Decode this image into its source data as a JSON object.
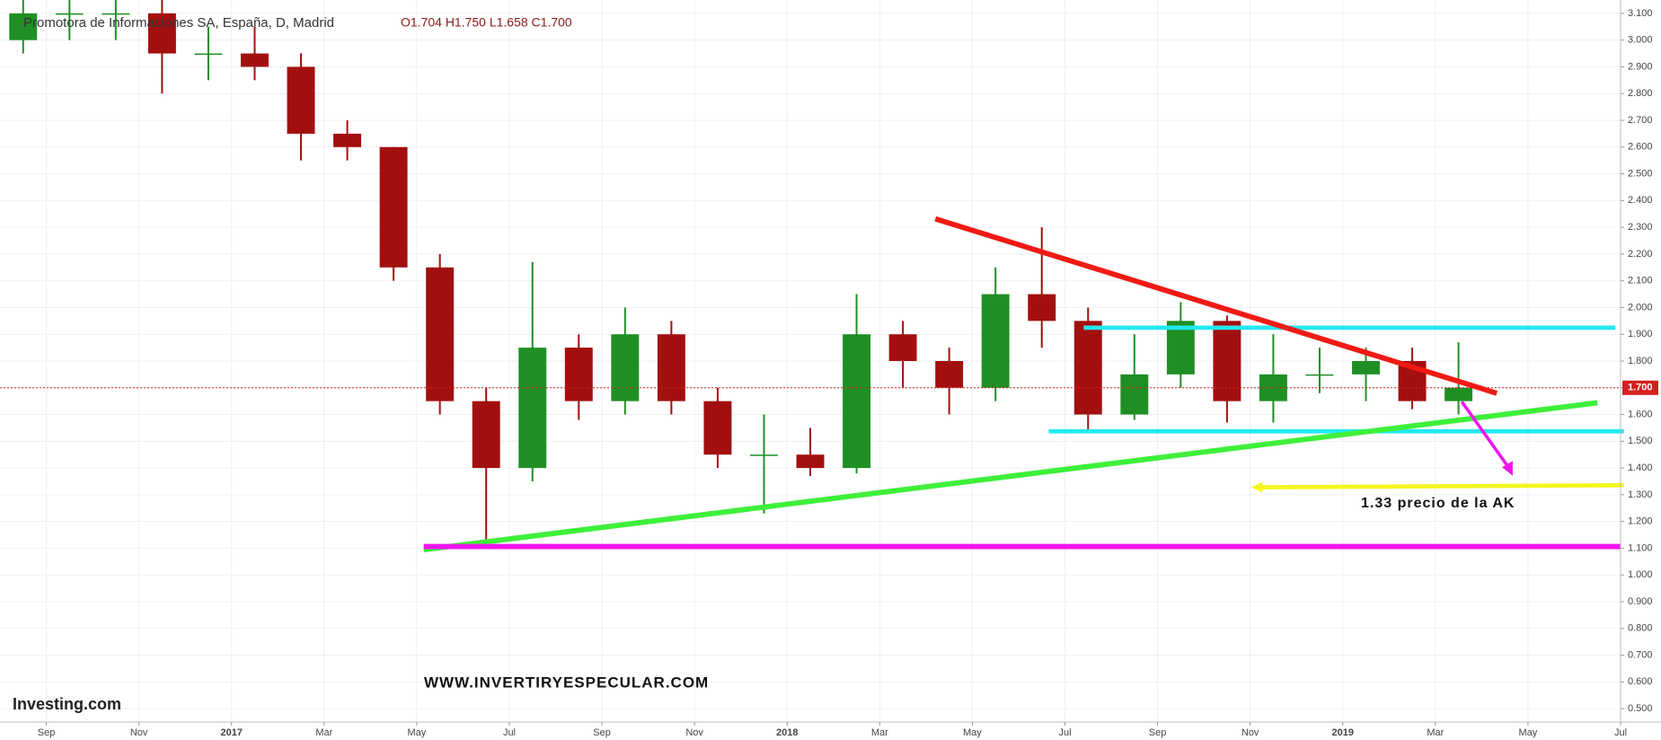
{
  "chart_data": {
    "type": "candlestick",
    "title": "Promotora de Informaciones SA, España, D, Madrid",
    "subtitle": "O1.704  H1.750  L1.658  C1.700",
    "annotations": [
      "WWW.INVERTIRYESPECULAR.COM",
      "1.33 precio de la AK"
    ],
    "source": "Investing.com",
    "up_color": "#1f8f24",
    "down_color": "#a30f0f",
    "grid": true,
    "x": [
      "2016-08",
      "2016-09",
      "2016-10",
      "2016-11",
      "2016-12",
      "2017-01",
      "2017-02",
      "2017-03",
      "2017-04",
      "2017-05",
      "2017-06",
      "2017-07",
      "2017-08",
      "2017-09",
      "2017-10",
      "2017-11",
      "2017-12",
      "2018-01",
      "2018-02",
      "2018-03",
      "2018-04",
      "2018-05",
      "2018-06",
      "2018-07",
      "2018-08",
      "2018-09",
      "2018-10",
      "2018-11",
      "2018-12",
      "2019-01",
      "2019-02",
      "2019-03"
    ],
    "open": [
      3.0,
      3.1,
      3.1,
      3.1,
      2.95,
      2.95,
      2.9,
      2.65,
      2.6,
      2.15,
      1.65,
      1.4,
      1.85,
      1.65,
      1.9,
      1.65,
      1.45,
      1.45,
      1.4,
      1.9,
      1.8,
      1.7,
      2.05,
      1.95,
      1.6,
      1.75,
      1.95,
      1.65,
      1.75,
      1.75,
      1.8,
      1.65
    ],
    "high": [
      3.15,
      3.15,
      3.15,
      3.15,
      3.05,
      3.05,
      2.95,
      2.7,
      2.6,
      2.2,
      1.7,
      2.17,
      1.9,
      2.0,
      1.95,
      1.7,
      1.6,
      1.55,
      2.05,
      1.95,
      1.85,
      2.15,
      2.3,
      2.0,
      1.9,
      2.02,
      1.97,
      1.9,
      1.85,
      1.85,
      1.85,
      1.87
    ],
    "low": [
      2.95,
      3.0,
      3.0,
      2.8,
      2.85,
      2.85,
      2.55,
      2.55,
      2.1,
      1.6,
      1.13,
      1.35,
      1.58,
      1.6,
      1.6,
      1.4,
      1.23,
      1.37,
      1.38,
      1.7,
      1.6,
      1.65,
      1.85,
      1.54,
      1.58,
      1.7,
      1.57,
      1.57,
      1.68,
      1.65,
      1.62,
      1.6
    ],
    "close": [
      3.1,
      3.1,
      3.1,
      2.95,
      2.95,
      2.9,
      2.65,
      2.6,
      2.15,
      1.65,
      1.4,
      1.85,
      1.65,
      1.9,
      1.65,
      1.45,
      1.45,
      1.4,
      1.9,
      1.8,
      1.7,
      2.05,
      1.95,
      1.6,
      1.75,
      1.95,
      1.65,
      1.75,
      1.75,
      1.8,
      1.65,
      1.7
    ],
    "xlim": [
      "2016-08",
      "2019-07"
    ],
    "xticks": [
      {
        "value": "2016-09",
        "label": "Sep"
      },
      {
        "value": "2016-11",
        "label": "Nov"
      },
      {
        "value": "2017-01",
        "label": "2017"
      },
      {
        "value": "2017-03",
        "label": "Mar"
      },
      {
        "value": "2017-05",
        "label": "May"
      },
      {
        "value": "2017-07",
        "label": "Jul"
      },
      {
        "value": "2017-09",
        "label": "Sep"
      },
      {
        "value": "2017-11",
        "label": "Nov"
      },
      {
        "value": "2018-01",
        "label": "2018"
      },
      {
        "value": "2018-03",
        "label": "Mar"
      },
      {
        "value": "2018-05",
        "label": "May"
      },
      {
        "value": "2018-07",
        "label": "Jul"
      },
      {
        "value": "2018-09",
        "label": "Sep"
      },
      {
        "value": "2018-11",
        "label": "Nov"
      },
      {
        "value": "2019-01",
        "label": "2019"
      },
      {
        "value": "2019-03",
        "label": "Mar"
      },
      {
        "value": "2019-05",
        "label": "May"
      },
      {
        "value": "2019-07",
        "label": "Jul"
      }
    ],
    "ylim": [
      0.45,
      3.15
    ],
    "yticks": [
      {
        "value": 0.5,
        "label": "0.500"
      },
      {
        "value": 0.6,
        "label": "0.600"
      },
      {
        "value": 0.7,
        "label": "0.700"
      },
      {
        "value": 0.8,
        "label": "0.800"
      },
      {
        "value": 0.9,
        "label": "0.900"
      },
      {
        "value": 1.0,
        "label": "1.000"
      },
      {
        "value": 1.1,
        "label": "1.100"
      },
      {
        "value": 1.2,
        "label": "1.200"
      },
      {
        "value": 1.3,
        "label": "1.300"
      },
      {
        "value": 1.4,
        "label": "1.400"
      },
      {
        "value": 1.5,
        "label": "1.500"
      },
      {
        "value": 1.6,
        "label": "1.600"
      },
      {
        "value": 1.7,
        "label": "1.700"
      },
      {
        "value": 1.8,
        "label": "1.800"
      },
      {
        "value": 1.9,
        "label": "1.900"
      },
      {
        "value": 2.0,
        "label": "2.000"
      },
      {
        "value": 2.1,
        "label": "2.100"
      },
      {
        "value": 2.2,
        "label": "2.200"
      },
      {
        "value": 2.3,
        "label": "2.300"
      },
      {
        "value": 2.4,
        "label": "2.400"
      },
      {
        "value": 2.5,
        "label": "2.500"
      },
      {
        "value": 2.6,
        "label": "2.600"
      },
      {
        "value": 2.7,
        "label": "2.700"
      },
      {
        "value": 2.8,
        "label": "2.800"
      },
      {
        "value": 2.9,
        "label": "2.900"
      },
      {
        "value": 3.0,
        "label": "3.000"
      },
      {
        "value": 3.1,
        "label": "3.100"
      }
    ],
    "current_price": {
      "value": 1.7,
      "label": "1.700"
    }
  }
}
